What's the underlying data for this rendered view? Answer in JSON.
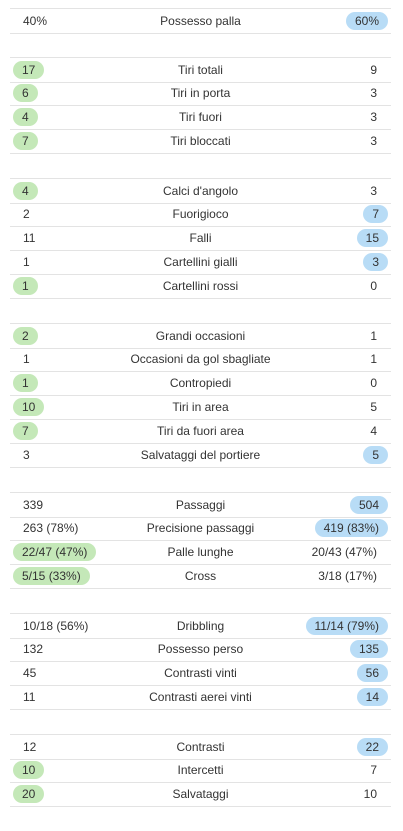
{
  "sections": [
    {
      "rows": [
        {
          "label": "Possesso palla",
          "home": "40%",
          "away": "60%",
          "leader": "away"
        }
      ]
    },
    {
      "rows": [
        {
          "label": "Tiri totali",
          "home": "17",
          "away": "9",
          "leader": "home"
        },
        {
          "label": "Tiri in porta",
          "home": "6",
          "away": "3",
          "leader": "home"
        },
        {
          "label": "Tiri fuori",
          "home": "4",
          "away": "3",
          "leader": "home"
        },
        {
          "label": "Tiri bloccati",
          "home": "7",
          "away": "3",
          "leader": "home"
        }
      ]
    },
    {
      "rows": [
        {
          "label": "Calci d'angolo",
          "home": "4",
          "away": "3",
          "leader": "home"
        },
        {
          "label": "Fuorigioco",
          "home": "2",
          "away": "7",
          "leader": "away"
        },
        {
          "label": "Falli",
          "home": "11",
          "away": "15",
          "leader": "away"
        },
        {
          "label": "Cartellini gialli",
          "home": "1",
          "away": "3",
          "leader": "away"
        },
        {
          "label": "Cartellini rossi",
          "home": "1",
          "away": "0",
          "leader": "home"
        }
      ]
    },
    {
      "rows": [
        {
          "label": "Grandi occasioni",
          "home": "2",
          "away": "1",
          "leader": "home"
        },
        {
          "label": "Occasioni da gol sbagliate",
          "home": "1",
          "away": "1",
          "leader": "none"
        },
        {
          "label": "Contropiedi",
          "home": "1",
          "away": "0",
          "leader": "home"
        },
        {
          "label": "Tiri in area",
          "home": "10",
          "away": "5",
          "leader": "home"
        },
        {
          "label": "Tiri da fuori area",
          "home": "7",
          "away": "4",
          "leader": "home"
        },
        {
          "label": "Salvataggi del portiere",
          "home": "3",
          "away": "5",
          "leader": "away"
        }
      ]
    },
    {
      "rows": [
        {
          "label": "Passaggi",
          "home": "339",
          "away": "504",
          "leader": "away"
        },
        {
          "label": "Precisione passaggi",
          "home": "263 (78%)",
          "away": "419 (83%)",
          "leader": "away"
        },
        {
          "label": "Palle lunghe",
          "home": "22/47 (47%)",
          "away": "20/43 (47%)",
          "leader": "home"
        },
        {
          "label": "Cross",
          "home": "5/15 (33%)",
          "away": "3/18 (17%)",
          "leader": "home"
        }
      ]
    },
    {
      "rows": [
        {
          "label": "Dribbling",
          "home": "10/18 (56%)",
          "away": "11/14 (79%)",
          "leader": "away"
        },
        {
          "label": "Possesso perso",
          "home": "132",
          "away": "135",
          "leader": "away"
        },
        {
          "label": "Contrasti vinti",
          "home": "45",
          "away": "56",
          "leader": "away"
        },
        {
          "label": "Contrasti aerei vinti",
          "home": "11",
          "away": "14",
          "leader": "away"
        }
      ]
    },
    {
      "rows": [
        {
          "label": "Contrasti",
          "home": "12",
          "away": "22",
          "leader": "away"
        },
        {
          "label": "Intercetti",
          "home": "10",
          "away": "7",
          "leader": "home"
        },
        {
          "label": "Salvataggi",
          "home": "20",
          "away": "10",
          "leader": "home"
        }
      ]
    }
  ],
  "colors": {
    "home_highlight": "#c4e8b8",
    "away_highlight": "#b8dcf6",
    "divider": "#e3e3e3"
  }
}
